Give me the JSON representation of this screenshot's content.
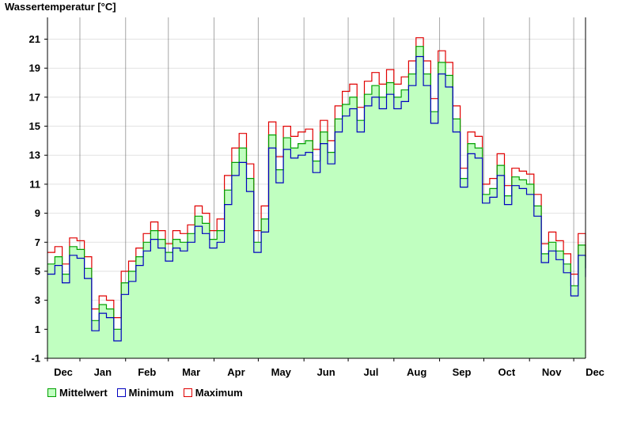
{
  "chart_data": {
    "type": "line",
    "title": "Wassertemperatur [°C]",
    "xlabel": "",
    "ylabel": "",
    "ylim": [
      -1,
      22.5
    ],
    "y_ticks": [
      -1,
      1,
      3,
      5,
      7,
      9,
      11,
      13,
      15,
      17,
      19,
      21
    ],
    "x_range": [
      0,
      365
    ],
    "month_labels": [
      "Dec",
      "Jan",
      "Feb",
      "Mar",
      "Apr",
      "May",
      "Jun",
      "Jul",
      "Aug",
      "Sep",
      "Oct",
      "Nov",
      "Dec"
    ],
    "month_boundaries": [
      0,
      22,
      53,
      82,
      113,
      143,
      174,
      204,
      235,
      266,
      296,
      327,
      357,
      365
    ],
    "grid": true,
    "legend_position": "bottom-left",
    "x": [
      0,
      5,
      10,
      15,
      20,
      25,
      30,
      35,
      40,
      45,
      50,
      55,
      60,
      65,
      70,
      75,
      80,
      85,
      90,
      95,
      100,
      105,
      110,
      115,
      120,
      125,
      130,
      135,
      140,
      145,
      150,
      155,
      160,
      165,
      170,
      175,
      180,
      185,
      190,
      195,
      200,
      205,
      210,
      215,
      220,
      225,
      230,
      235,
      240,
      245,
      250,
      255,
      260,
      265,
      270,
      275,
      280,
      285,
      290,
      295,
      300,
      305,
      310,
      315,
      320,
      325,
      330,
      335,
      340,
      345,
      350,
      355,
      360,
      365
    ],
    "series": [
      {
        "name": "Mittelwert",
        "color": "#00a000",
        "fill": "#c0ffc0",
        "values": [
          5.5,
          6.0,
          4.8,
          6.7,
          6.5,
          5.2,
          1.6,
          2.7,
          2.4,
          1.0,
          4.2,
          5.0,
          6.0,
          7.0,
          7.8,
          7.2,
          6.3,
          7.2,
          7.0,
          7.6,
          8.8,
          8.3,
          7.2,
          7.8,
          10.6,
          12.5,
          13.5,
          11.4,
          7.0,
          8.6,
          14.4,
          12.0,
          14.2,
          13.5,
          13.8,
          14.0,
          12.6,
          14.6,
          13.2,
          15.5,
          16.5,
          17.0,
          15.4,
          17.2,
          17.8,
          17.0,
          18.0,
          17.0,
          17.5,
          18.6,
          20.5,
          18.6,
          16.0,
          19.4,
          18.5,
          15.5,
          11.4,
          13.8,
          13.5,
          10.3,
          10.7,
          12.3,
          10.2,
          11.5,
          11.3,
          11.0,
          9.5,
          6.2,
          7.0,
          6.4,
          5.5,
          4.0,
          6.8,
          5.2
        ]
      },
      {
        "name": "Minimum",
        "color": "#0000c0",
        "values": [
          4.8,
          5.4,
          4.2,
          6.1,
          5.9,
          4.5,
          0.9,
          2.1,
          1.8,
          0.2,
          3.4,
          4.3,
          5.4,
          6.4,
          7.2,
          6.6,
          5.7,
          6.6,
          6.4,
          7.0,
          8.1,
          7.6,
          6.6,
          7.0,
          9.6,
          11.6,
          12.5,
          10.5,
          6.3,
          7.7,
          13.5,
          11.1,
          13.4,
          12.8,
          13.0,
          13.2,
          11.8,
          13.8,
          12.4,
          14.6,
          15.7,
          16.2,
          14.6,
          16.4,
          17.0,
          16.2,
          17.2,
          16.2,
          16.7,
          17.8,
          19.8,
          17.8,
          15.2,
          18.6,
          17.7,
          14.6,
          10.8,
          13.1,
          12.8,
          9.7,
          10.1,
          11.6,
          9.6,
          10.9,
          10.7,
          10.3,
          8.8,
          5.6,
          6.4,
          5.8,
          4.9,
          3.3,
          6.1,
          4.6
        ]
      },
      {
        "name": "Maximum",
        "color": "#e00000",
        "values": [
          6.3,
          6.7,
          5.5,
          7.3,
          7.1,
          6.0,
          2.4,
          3.3,
          3.0,
          1.8,
          5.0,
          5.7,
          6.6,
          7.6,
          8.4,
          7.8,
          6.9,
          7.8,
          7.6,
          8.2,
          9.5,
          9.0,
          7.8,
          8.6,
          11.6,
          13.5,
          14.5,
          12.4,
          7.8,
          9.5,
          15.3,
          12.9,
          15.0,
          14.3,
          14.6,
          14.8,
          13.4,
          15.4,
          14.0,
          16.4,
          17.4,
          17.9,
          16.3,
          18.1,
          18.7,
          17.9,
          18.9,
          17.9,
          18.4,
          19.5,
          21.1,
          19.5,
          16.9,
          20.2,
          19.4,
          16.4,
          12.1,
          14.6,
          14.3,
          11.0,
          11.4,
          13.1,
          10.9,
          12.1,
          11.9,
          11.7,
          10.3,
          6.9,
          7.7,
          7.1,
          6.2,
          4.8,
          7.6,
          6.0
        ]
      }
    ]
  }
}
